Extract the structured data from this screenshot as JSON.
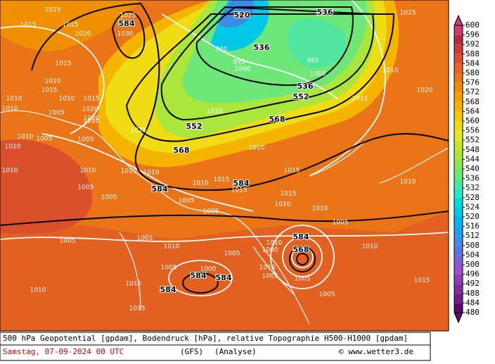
{
  "map": {
    "pressure_labels": [
      "1015",
      "1015",
      "1015",
      "1025",
      "1020",
      "1030",
      "1015",
      "1010",
      "1010",
      "1015",
      "1010",
      "1015",
      "1010",
      "1005",
      "1010",
      "1010",
      "1005",
      "1010",
      "1005",
      "1020",
      "1020",
      "1025",
      "1010",
      "1005",
      "1005",
      "1010",
      "1010",
      "1010",
      "1010",
      "1015",
      "1015",
      "1005",
      "1005",
      "1005",
      "1005",
      "1010",
      "1010",
      "1015",
      "1015",
      "1005",
      "1000",
      "1005",
      "1010",
      "1010",
      "1010",
      "1015",
      "1010",
      "1005",
      "1005",
      "1005",
      "1015",
      "1010",
      "1010",
      "1020",
      "1025",
      "1015",
      "1010",
      "995",
      "1000",
      "990",
      "995",
      "1000",
      "1015",
      "1010",
      "1010",
      "1000",
      "1005"
    ],
    "height_labels": [
      "584",
      "520",
      "536",
      "536",
      "536",
      "552",
      "552",
      "568",
      "568",
      "584",
      "584",
      "584",
      "584",
      "584",
      "584",
      "568"
    ],
    "colorbar": {
      "ticks": [
        480,
        484,
        488,
        492,
        496,
        500,
        504,
        508,
        512,
        516,
        520,
        524,
        528,
        532,
        536,
        540,
        544,
        548,
        552,
        556,
        560,
        564,
        568,
        572,
        576,
        580,
        584,
        588,
        592,
        596,
        600
      ],
      "colors": [
        "#5a0a6e",
        "#6e1e8c",
        "#7d2da0",
        "#8c3cb4",
        "#9b50c8",
        "#7864d2",
        "#5a78dc",
        "#3c8ce6",
        "#1ea0f0",
        "#00b4f0",
        "#00c8e6",
        "#00dcdc",
        "#28e6c8",
        "#50e6a0",
        "#6ee678",
        "#8ce650",
        "#aae63c",
        "#c8e628",
        "#e6e628",
        "#f0dc14",
        "#f5c80a",
        "#f5b400",
        "#f5a000",
        "#f08c00",
        "#eb7814",
        "#e66428",
        "#dc5032",
        "#c83c3c",
        "#b42d3c",
        "#c83c78"
      ]
    },
    "footer": {
      "description": "500 hPa Geopotential [gpdam], Bodendruck [hPa], relative Topographie H500-H1000 [gpdam]",
      "date": "Samstag, 07-09-2024  00 UTC",
      "model": "(GFS)",
      "run": "(Analyse)",
      "credit": "© www.wetter3.de"
    }
  }
}
